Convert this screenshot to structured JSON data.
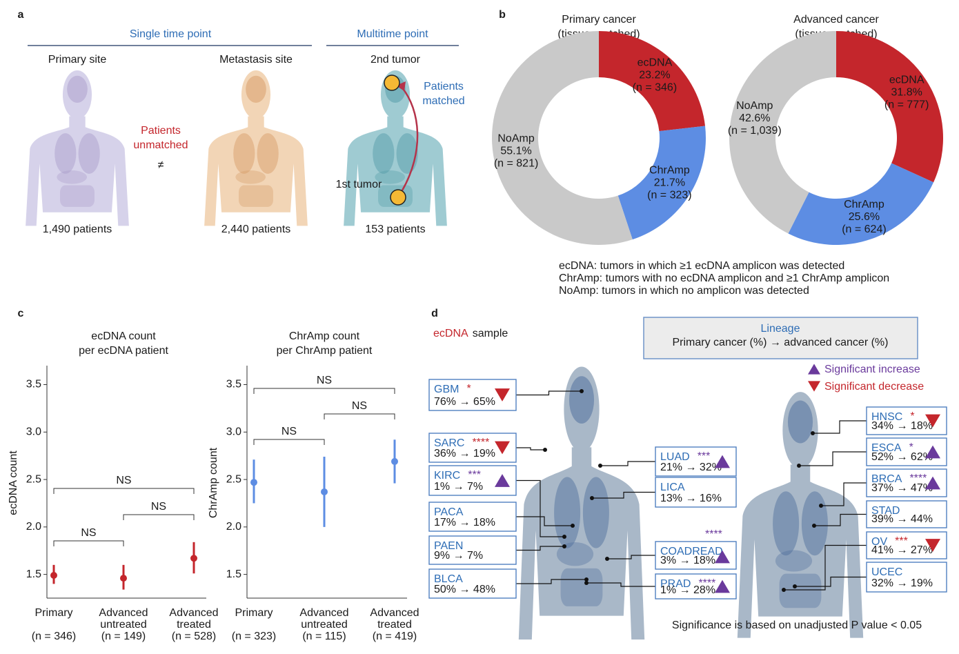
{
  "panel_labels": [
    "a",
    "b",
    "c",
    "d"
  ],
  "panel_a": {
    "groups": [
      "Single time point",
      "Multitime point"
    ],
    "sites": [
      {
        "name": "Primary site",
        "count": "1,490 patients"
      },
      {
        "name": "Metastasis site",
        "count": "2,440 patients"
      },
      {
        "name": "2nd tumor",
        "count": "153 patients"
      }
    ],
    "unmatched": [
      "Patients",
      "unmatched"
    ],
    "not_equal": "≠",
    "matched": [
      "Patients",
      "matched"
    ],
    "first_tumor": "1st tumor"
  },
  "chart_data": [
    {
      "type": "pie",
      "title": [
        "Primary cancer",
        "(tissue-matched)"
      ],
      "categories": [
        "ecDNA",
        "ChrAmp",
        "NoAmp"
      ],
      "values": [
        23.2,
        21.7,
        55.1
      ],
      "value_labels": [
        "23.2%",
        "21.7%",
        "55.1%"
      ],
      "count_labels": [
        "(n = 346)",
        "(n = 323)",
        "(n = 821)"
      ],
      "colors": [
        "#c4262c",
        "#5d8de3",
        "#c9c9c9"
      ]
    },
    {
      "type": "pie",
      "title": [
        "Advanced cancer",
        "(tissue-matched)"
      ],
      "categories": [
        "ecDNA",
        "ChrAmp",
        "NoAmp"
      ],
      "values": [
        31.8,
        25.6,
        42.6
      ],
      "value_labels": [
        "31.8%",
        "25.6%",
        "42.6%"
      ],
      "count_labels": [
        "(n = 777)",
        "(n = 624)",
        "(n = 1,039)"
      ],
      "colors": [
        "#c4262c",
        "#5d8de3",
        "#c9c9c9"
      ]
    },
    {
      "type": "pointrange",
      "title": [
        "ecDNA count",
        "per ecDNA patient"
      ],
      "ylabel": "ecDNA count",
      "categories": [
        [
          "Primary"
        ],
        [
          "Advanced",
          "untreated"
        ],
        [
          "Advanced",
          "treated"
        ]
      ],
      "n_labels": [
        "(n = 346)",
        "(n = 149)",
        "(n = 528)"
      ],
      "values": [
        1.49,
        1.46,
        1.67
      ],
      "lower": [
        1.4,
        1.34,
        1.51
      ],
      "upper": [
        1.6,
        1.6,
        1.84
      ],
      "color": "#c4262c",
      "ylim": [
        1.25,
        3.7
      ],
      "yticks": [
        1.5,
        {
          "value": 2,
          "label": "2.0"
        },
        2.5,
        {
          "value": 3,
          "label": "3.0"
        },
        3.5
      ],
      "comparisons": [
        {
          "label": "NS",
          "groups": [
            0,
            1
          ]
        },
        {
          "label": "NS",
          "groups": [
            1,
            2
          ]
        },
        {
          "label": "NS",
          "groups": [
            0,
            2
          ]
        }
      ]
    },
    {
      "type": "pointrange",
      "title": [
        "ChrAmp count",
        "per ChrAmp patient"
      ],
      "ylabel": "ChrAmp count",
      "categories": [
        [
          "Primary"
        ],
        [
          "Advanced",
          "untreated"
        ],
        [
          "Advanced",
          "treated"
        ]
      ],
      "n_labels": [
        "(n = 323)",
        "(n = 115)",
        "(n = 419)"
      ],
      "values": [
        2.47,
        2.37,
        2.69
      ],
      "lower": [
        2.25,
        2.0,
        2.46
      ],
      "upper": [
        2.71,
        2.74,
        2.92
      ],
      "color": "#5d8de3",
      "ylim": [
        1.25,
        3.7
      ],
      "yticks": [
        1.5,
        {
          "value": 2,
          "label": "2.0"
        },
        2.5,
        {
          "value": 3,
          "label": "3.0"
        },
        3.5
      ],
      "comparisons": [
        {
          "label": "NS",
          "groups": [
            0,
            1
          ]
        },
        {
          "label": "NS",
          "groups": [
            1,
            2
          ]
        },
        {
          "label": "NS",
          "groups": [
            0,
            2
          ]
        }
      ]
    }
  ],
  "panel_b_notes": [
    "ecDNA: tumors in which ≥1 ecDNA amplicon was detected",
    "ChrAmp: tumors with no ecDNA amplicon and ≥1 ChrAmp amplicon",
    "NoAmp: tumors in which no amplicon was detected"
  ],
  "panel_d": {
    "heading": [
      "ecDNA",
      "sample"
    ],
    "lineage_box": [
      "Lineage",
      "Primary cancer (%) → advanced cancer (%)"
    ],
    "legend": [
      {
        "label": "Significant increase",
        "trend": "increase"
      },
      {
        "label": "Significant decrease",
        "trend": "decrease"
      }
    ],
    "boxes": [
      {
        "name": "GBM",
        "change": "76% → 65%",
        "stars": "*",
        "trend": "decrease"
      },
      {
        "name": "SARC",
        "change": "36% → 19%",
        "stars": "****",
        "trend": "decrease"
      },
      {
        "name": "KIRC",
        "change": "1% → 7%",
        "stars": "***",
        "trend": "increase"
      },
      {
        "name": "PACA",
        "change": "17% → 18%"
      },
      {
        "name": "PAEN",
        "change": "9% → 7%"
      },
      {
        "name": "BLCA",
        "change": "50% → 48%"
      },
      {
        "name": "LUAD",
        "change": "21% → 32%",
        "stars": "***",
        "trend": "increase"
      },
      {
        "name": "LICA",
        "change": "13% → 16%"
      },
      {
        "name": "COADREAD",
        "change": "3% → 18%",
        "stars": "****",
        "trend": "increase"
      },
      {
        "name": "PRAD",
        "change": "1% → 28%",
        "stars": "****",
        "trend": "increase"
      },
      {
        "name": "HNSC",
        "change": "34% → 18%",
        "stars": "*",
        "trend": "decrease"
      },
      {
        "name": "ESCA",
        "change": "52% → 62%",
        "stars": "*",
        "trend": "increase"
      },
      {
        "name": "BRCA",
        "change": "37% → 47%",
        "stars": "****",
        "trend": "increase"
      },
      {
        "name": "STAD",
        "change": "39% → 44%"
      },
      {
        "name": "OV",
        "change": "41% → 27%",
        "stars": "***",
        "trend": "decrease"
      },
      {
        "name": "UCEC",
        "change": "32% → 19%"
      }
    ],
    "footnote": "Significance is based on unadjusted P value < 0.05"
  }
}
